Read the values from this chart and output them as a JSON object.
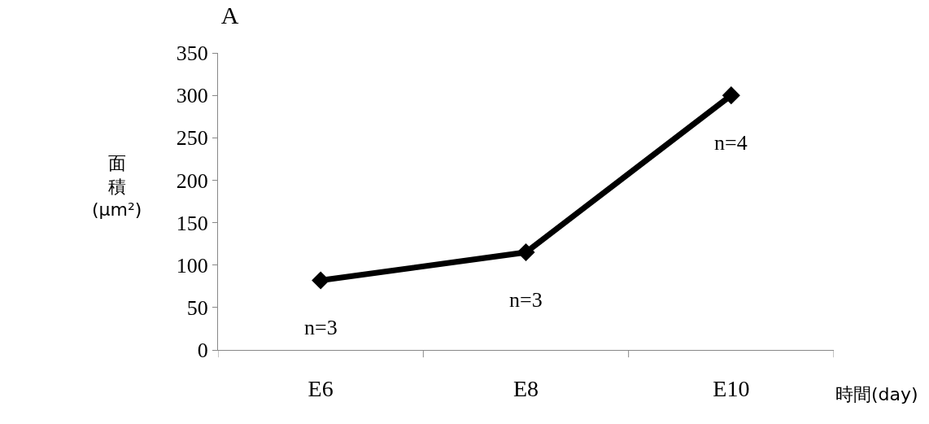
{
  "chart_data": {
    "type": "line",
    "title": "A",
    "xlabel": "時間(day)",
    "ylabel": "面積(μm²)",
    "categories": [
      "E6",
      "E8",
      "E10"
    ],
    "series": [
      {
        "color": "#000000",
        "values": [
          82,
          115,
          300
        ]
      }
    ],
    "ylim": [
      0,
      350
    ],
    "yticks": [
      0,
      50,
      100,
      150,
      200,
      250,
      300,
      350
    ],
    "marker": "diamond",
    "line_style": "solid",
    "grid": false,
    "legend": false,
    "annotations": [
      {
        "text": "n=3",
        "x": "E6",
        "y": 82
      },
      {
        "text": "n=3",
        "x": "E8",
        "y": 115
      },
      {
        "text": "n=4",
        "x": "E10",
        "y": 300
      }
    ]
  }
}
